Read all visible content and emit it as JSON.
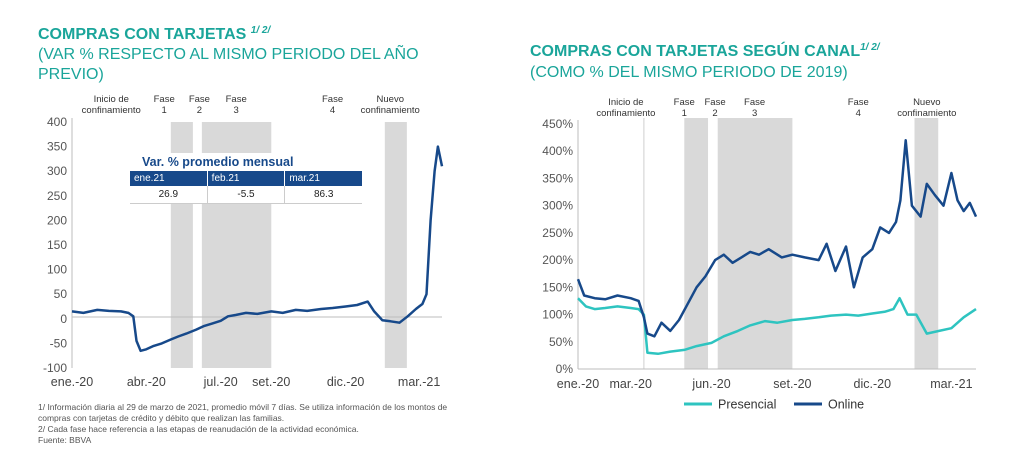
{
  "left": {
    "title": "COMPRAS CON TARJETAS",
    "title_sup": "1/ 2/",
    "subtitle_line1": "(VAR % RESPECTO AL MISMO PERIODO DEL AÑO",
    "subtitle_line2": "PREVIO)",
    "table": {
      "title": "Var. % promedio mensual",
      "headers": [
        "ene.21",
        "feb.21",
        "mar.21"
      ],
      "values": [
        "26.9",
        "-5.5",
        "86.3"
      ]
    },
    "footnotes": [
      "1/ Información diaria al 29 de marzo de 2021, promedio móvil 7 días. Se utiliza información de los montos de",
      "compras con tarjetas de crédito y débito que realizan las familias.",
      "2/ Cada fase hace referencia a las etapas de reanudación de la actividad económica.",
      "Fuente: BBVA"
    ]
  },
  "right": {
    "title": "COMPRAS CON TARJETAS SEGÚN CANAL",
    "title_sup": "1/ 2/",
    "subtitle": "(COMO % DEL MISMO PERIODO DE 2019)"
  },
  "chart_data": [
    {
      "type": "line",
      "ylim": [
        -100,
        400
      ],
      "yticks": [
        "400",
        "350",
        "300",
        "250",
        "200",
        "150",
        "100",
        "50",
        "0",
        "-50",
        "-100"
      ],
      "ytick_values": [
        400,
        350,
        300,
        250,
        200,
        150,
        100,
        50,
        0,
        -50,
        -100
      ],
      "xlim": [
        "2020-01-01",
        "2021-03-29"
      ],
      "xticks": [
        "ene.-20",
        "abr.-20",
        "jul.-20",
        "set.-20",
        "dic.-20",
        "mar.-21"
      ],
      "xtick_dates": [
        "2020-01-01",
        "2020-04-01",
        "2020-07-01",
        "2020-09-01",
        "2020-12-01",
        "2021-03-01"
      ],
      "grid": false,
      "annotations": [
        {
          "text": [
            "Inicio de",
            "confinamiento"
          ],
          "date": "2020-03-16"
        },
        {
          "text": [
            "Fase",
            "1"
          ],
          "date": "2020-05-10"
        },
        {
          "text": [
            "Fase",
            "2"
          ],
          "date": "2020-06-05"
        },
        {
          "text": [
            "Fase",
            "3"
          ],
          "date": "2020-07-20"
        },
        {
          "text": [
            "Fase",
            "4"
          ],
          "date": "2020-11-15"
        },
        {
          "text": [
            "Nuevo",
            "confinamiento"
          ],
          "date": "2021-02-01"
        }
      ],
      "shaded_periods": [
        [
          "2020-05-01",
          "2020-05-28"
        ],
        [
          "2020-06-08",
          "2020-09-01"
        ],
        [
          "2021-01-18",
          "2021-02-14"
        ]
      ],
      "series": [
        {
          "color": "#17498a",
          "x": [
            "2020-01-01",
            "2020-01-15",
            "2020-02-01",
            "2020-02-15",
            "2020-03-01",
            "2020-03-10",
            "2020-03-16",
            "2020-03-20",
            "2020-03-25",
            "2020-04-01",
            "2020-04-10",
            "2020-04-20",
            "2020-05-01",
            "2020-05-10",
            "2020-05-20",
            "2020-06-01",
            "2020-06-10",
            "2020-06-20",
            "2020-07-01",
            "2020-07-10",
            "2020-07-20",
            "2020-08-01",
            "2020-08-15",
            "2020-09-01",
            "2020-09-15",
            "2020-10-01",
            "2020-10-15",
            "2020-11-01",
            "2020-11-15",
            "2020-12-01",
            "2020-12-15",
            "2020-12-28",
            "2021-01-05",
            "2021-01-15",
            "2021-01-25",
            "2021-02-05",
            "2021-02-15",
            "2021-02-25",
            "2021-03-01",
            "2021-03-05",
            "2021-03-10",
            "2021-03-15",
            "2021-03-20",
            "2021-03-24",
            "2021-03-29"
          ],
          "y": [
            15,
            12,
            18,
            16,
            15,
            12,
            5,
            -45,
            -65,
            -62,
            -55,
            -50,
            -42,
            -36,
            -30,
            -22,
            -15,
            -10,
            -4,
            5,
            8,
            12,
            10,
            15,
            12,
            18,
            16,
            20,
            22,
            25,
            28,
            35,
            15,
            -3,
            -5,
            -8,
            5,
            20,
            25,
            30,
            50,
            200,
            300,
            350,
            310
          ]
        }
      ]
    },
    {
      "type": "line",
      "ylim": [
        0,
        450
      ],
      "yticks": [
        "450%",
        "400%",
        "350%",
        "300%",
        "250%",
        "200%",
        "150%",
        "100%",
        "50%",
        "0%"
      ],
      "ytick_values": [
        450,
        400,
        350,
        300,
        250,
        200,
        150,
        100,
        50,
        0
      ],
      "xlim": [
        "2020-01-01",
        "2021-03-29"
      ],
      "xticks": [
        "ene.-20",
        "mar.-20",
        "jun.-20",
        "set.-20",
        "dic.-20",
        "mar.-21"
      ],
      "xtick_dates": [
        "2020-01-01",
        "2020-03-01",
        "2020-06-01",
        "2020-09-01",
        "2020-12-01",
        "2021-03-01"
      ],
      "grid": false,
      "legend": "bottom",
      "annotations": [
        {
          "text": [
            "Inicio de",
            "confinamiento"
          ],
          "date": "2020-03-16"
        },
        {
          "text": [
            "Fase",
            "1"
          ],
          "date": "2020-05-10"
        },
        {
          "text": [
            "Fase",
            "2"
          ],
          "date": "2020-06-05"
        },
        {
          "text": [
            "Fase",
            "3"
          ],
          "date": "2020-07-20"
        },
        {
          "text": [
            "Fase",
            "4"
          ],
          "date": "2020-11-15"
        },
        {
          "text": [
            "Nuevo",
            "confinamiento"
          ],
          "date": "2021-02-01"
        }
      ],
      "shaded_periods": [
        [
          "2020-05-01",
          "2020-05-28"
        ],
        [
          "2020-06-08",
          "2020-09-01"
        ],
        [
          "2021-01-18",
          "2021-02-14"
        ]
      ],
      "series": [
        {
          "name": "Presencial",
          "color": "#2ec4c0",
          "x": [
            "2020-01-01",
            "2020-01-10",
            "2020-01-20",
            "2020-02-01",
            "2020-02-15",
            "2020-03-01",
            "2020-03-10",
            "2020-03-16",
            "2020-03-20",
            "2020-04-01",
            "2020-04-15",
            "2020-05-01",
            "2020-05-15",
            "2020-06-01",
            "2020-06-15",
            "2020-07-01",
            "2020-07-15",
            "2020-08-01",
            "2020-08-15",
            "2020-09-01",
            "2020-09-15",
            "2020-10-01",
            "2020-10-15",
            "2020-11-01",
            "2020-11-15",
            "2020-12-01",
            "2020-12-15",
            "2020-12-25",
            "2021-01-01",
            "2021-01-10",
            "2021-01-20",
            "2021-02-01",
            "2021-02-15",
            "2021-03-01",
            "2021-03-15",
            "2021-03-29"
          ],
          "y": [
            130,
            115,
            110,
            112,
            115,
            112,
            110,
            100,
            30,
            28,
            32,
            35,
            42,
            48,
            60,
            70,
            80,
            88,
            85,
            90,
            92,
            95,
            98,
            100,
            98,
            102,
            105,
            110,
            130,
            100,
            100,
            65,
            70,
            75,
            95,
            110
          ]
        },
        {
          "name": "Online",
          "color": "#17498a",
          "x": [
            "2020-01-01",
            "2020-01-08",
            "2020-01-20",
            "2020-02-01",
            "2020-02-15",
            "2020-03-01",
            "2020-03-10",
            "2020-03-16",
            "2020-03-20",
            "2020-03-28",
            "2020-04-05",
            "2020-04-15",
            "2020-04-25",
            "2020-05-05",
            "2020-05-15",
            "2020-05-25",
            "2020-06-05",
            "2020-06-15",
            "2020-06-25",
            "2020-07-05",
            "2020-07-15",
            "2020-07-25",
            "2020-08-05",
            "2020-08-20",
            "2020-09-01",
            "2020-09-15",
            "2020-10-01",
            "2020-10-10",
            "2020-10-20",
            "2020-11-01",
            "2020-11-10",
            "2020-11-20",
            "2020-12-01",
            "2020-12-10",
            "2020-12-20",
            "2020-12-28",
            "2021-01-02",
            "2021-01-08",
            "2021-01-15",
            "2021-01-25",
            "2021-02-01",
            "2021-02-10",
            "2021-02-20",
            "2021-03-01",
            "2021-03-08",
            "2021-03-15",
            "2021-03-22",
            "2021-03-29"
          ],
          "y": [
            165,
            135,
            130,
            128,
            135,
            130,
            125,
            95,
            65,
            60,
            85,
            70,
            90,
            120,
            150,
            170,
            200,
            210,
            195,
            205,
            215,
            210,
            220,
            205,
            210,
            205,
            200,
            230,
            180,
            225,
            150,
            205,
            220,
            260,
            250,
            270,
            310,
            420,
            300,
            280,
            340,
            320,
            300,
            360,
            310,
            290,
            305,
            280
          ]
        }
      ]
    }
  ]
}
